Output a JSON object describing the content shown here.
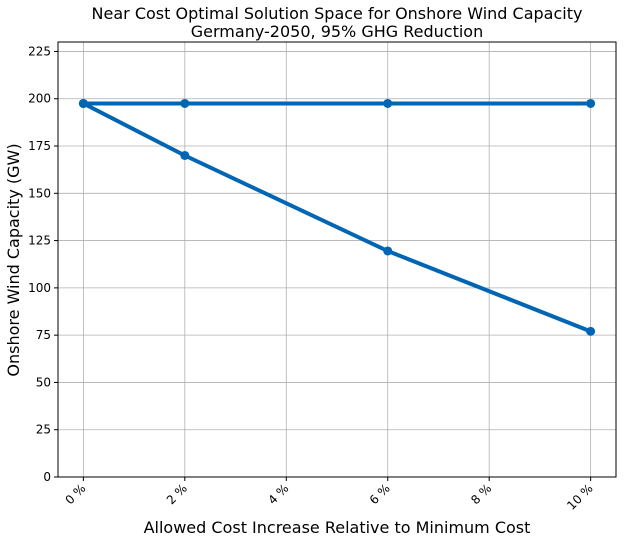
{
  "chart_data": {
    "type": "line",
    "title_line1": "Near Cost Optimal Solution Space for Onshore Wind Capacity",
    "title_line2": "Germany-2050, 95% GHG Reduction",
    "xlabel": "Allowed Cost Increase Relative to Minimum Cost",
    "ylabel": "Onshore Wind Capacity (GW)",
    "xlim": [
      -0.5,
      10.5
    ],
    "ylim": [
      0,
      230
    ],
    "x_ticks": [
      0,
      2,
      4,
      6,
      8,
      10
    ],
    "x_tick_labels": [
      "0 %",
      "2 %",
      "4 %",
      "6 %",
      "8 %",
      "10 %"
    ],
    "y_ticks": [
      0,
      25,
      50,
      75,
      100,
      125,
      150,
      175,
      200,
      225
    ],
    "y_tick_labels": [
      "0",
      "25",
      "50",
      "75",
      "100",
      "125",
      "150",
      "175",
      "200",
      "225"
    ],
    "grid": true,
    "color": "#0066b3",
    "series": [
      {
        "x": [
          0,
          2,
          6,
          10
        ],
        "values": [
          197.5,
          197.5,
          197.5,
          197.5
        ]
      },
      {
        "x": [
          0,
          2,
          6,
          10
        ],
        "values": [
          197.5,
          170,
          119.5,
          77
        ]
      }
    ]
  }
}
